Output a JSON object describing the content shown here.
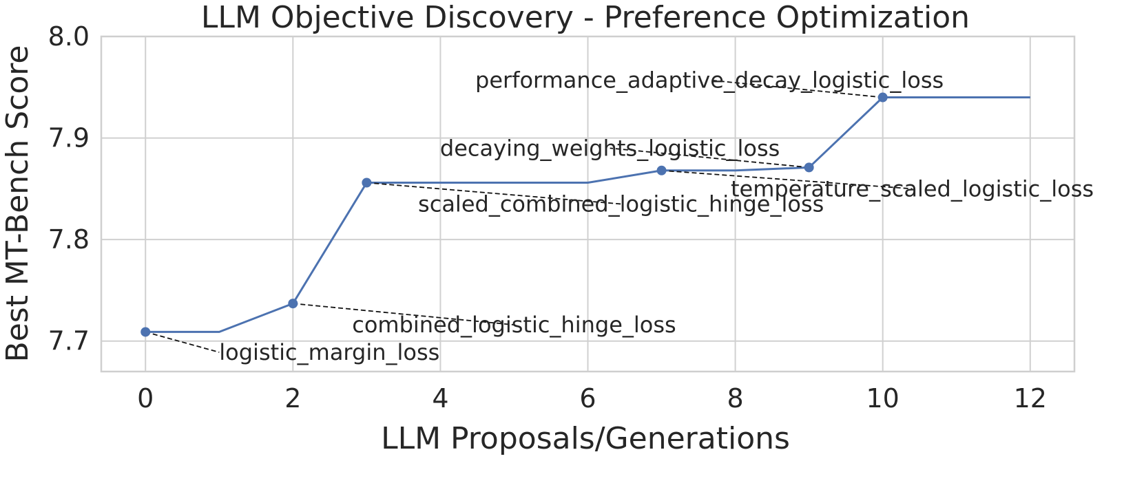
{
  "chart_data": {
    "type": "line",
    "title": "LLM Objective Discovery - Preference Optimization",
    "xlabel": "LLM Proposals/Generations",
    "ylabel": "Best MT-Bench Score",
    "xlim": [
      -0.6,
      12.6
    ],
    "ylim": [
      7.67,
      8.0
    ],
    "xticks": [
      0,
      2,
      4,
      6,
      8,
      10,
      12
    ],
    "yticks": [
      7.7,
      7.8,
      7.9,
      8.0
    ],
    "ytick_labels": [
      "7.7",
      "7.8",
      "7.9",
      "8.0"
    ],
    "grid": true,
    "color": "#4c72b0",
    "series": [
      {
        "x": [
          0,
          1,
          2,
          3,
          4,
          5,
          6,
          7,
          8,
          9,
          10,
          11,
          12
        ],
        "values": [
          7.709,
          7.709,
          7.737,
          7.856,
          7.856,
          7.856,
          7.856,
          7.868,
          7.868,
          7.871,
          7.94,
          7.94,
          7.94
        ]
      }
    ],
    "markers": [
      0,
      2,
      3,
      7,
      9,
      10
    ],
    "annotations": [
      {
        "point": 0,
        "text": "logistic_margin_loss",
        "text_x": 1.0,
        "text_y": 7.689,
        "anchor": "start"
      },
      {
        "point": 2,
        "text": "combined_logistic_hinge_loss",
        "text_x": 5.0,
        "text_y": 7.716,
        "anchor": "middle"
      },
      {
        "point": 3,
        "text": "scaled_combined_logistic_hinge_loss",
        "text_x": 6.45,
        "text_y": 7.835,
        "anchor": "middle"
      },
      {
        "point": 7,
        "text": "temperature_scaled_logistic_loss",
        "text_x": 10.4,
        "text_y": 7.85,
        "anchor": "middle"
      },
      {
        "point": 9,
        "text": "decaying_weights_logistic_loss",
        "text_x": 6.3,
        "text_y": 7.89,
        "anchor": "middle"
      },
      {
        "point": 10,
        "text": "performance_adaptive_decay_logistic_loss",
        "text_x": 7.65,
        "text_y": 7.957,
        "anchor": "middle"
      }
    ]
  }
}
